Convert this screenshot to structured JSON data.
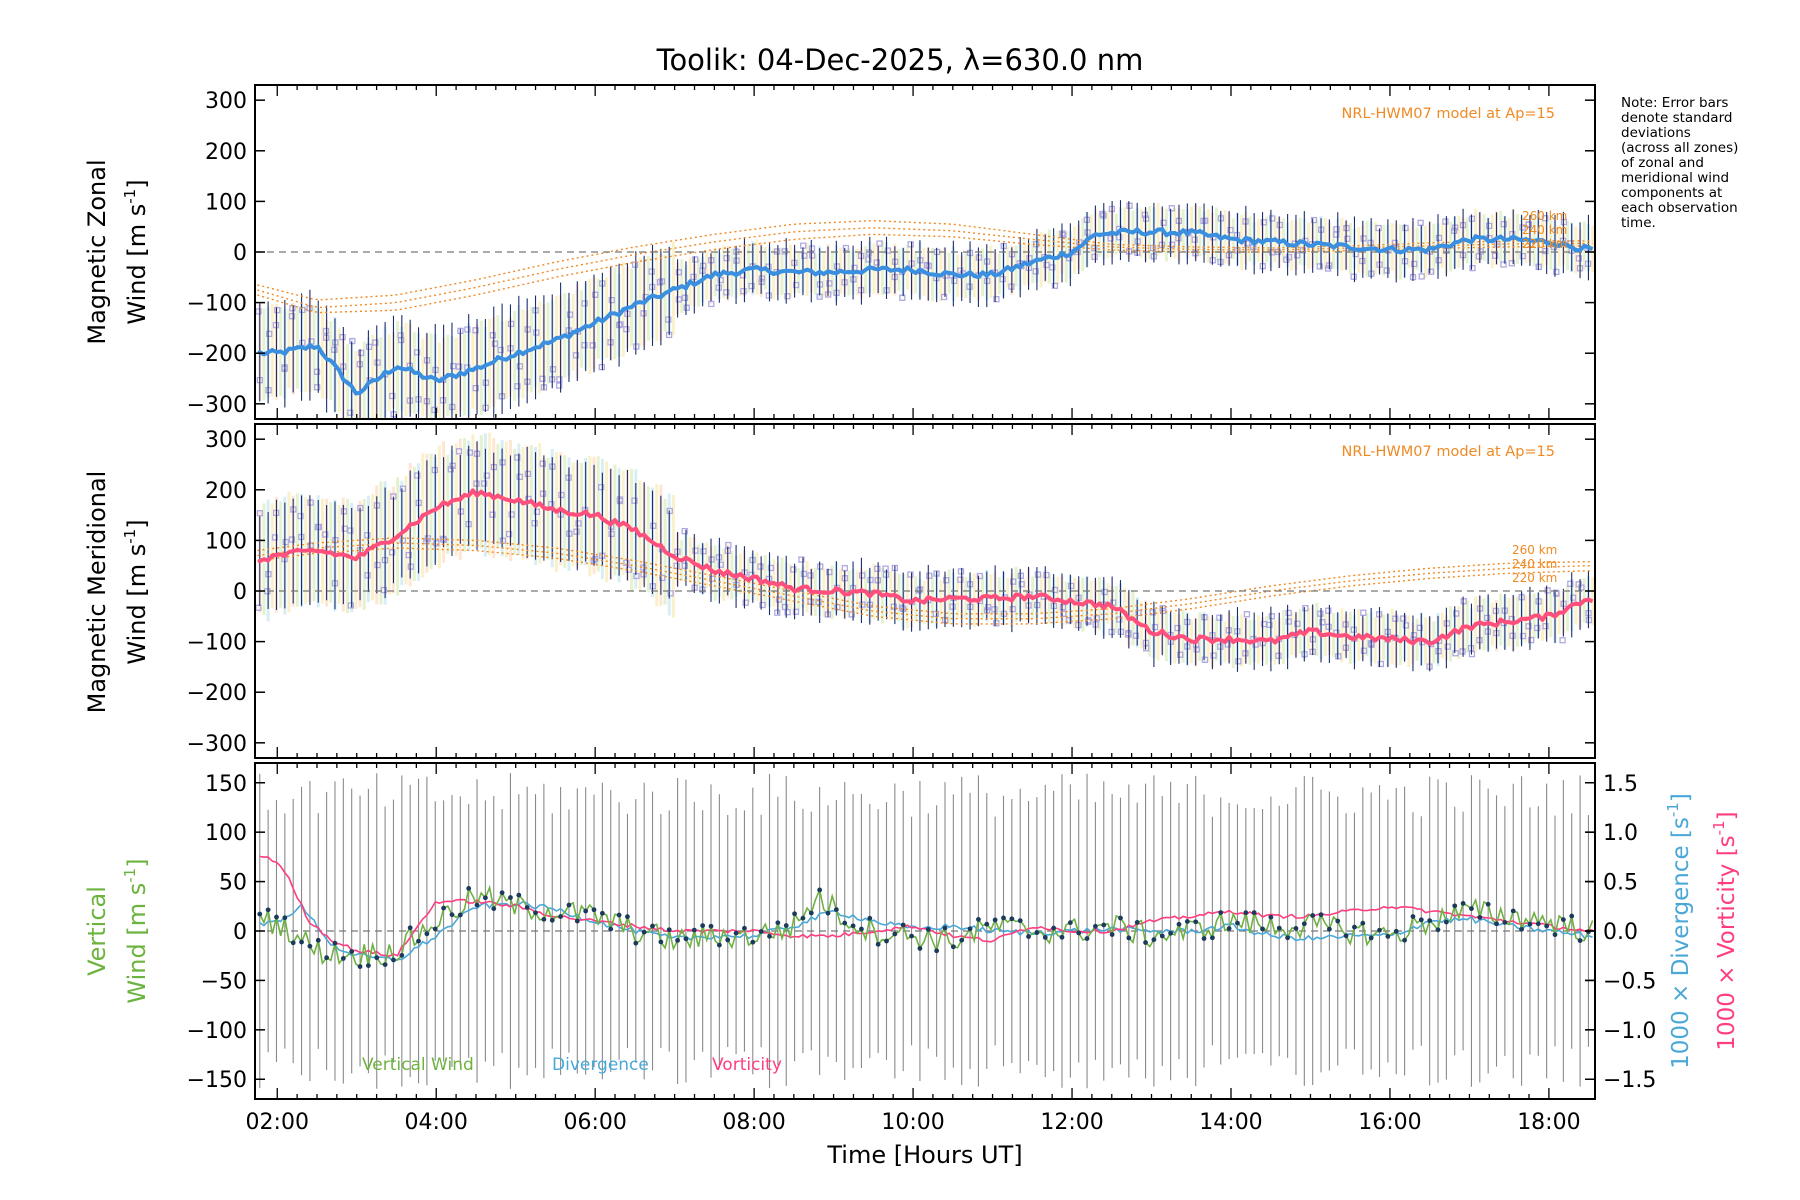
{
  "title": "Toolik: 04-Dec-2025, λ=630.0 nm",
  "note_lines": [
    "Note: Error bars",
    "denote standard",
    "deviations",
    "(across all zones)",
    "of zonal and",
    "meridional wind",
    "components at",
    "each observation",
    "time."
  ],
  "colors": {
    "zonal_mean": "#3a8fe0",
    "meridional_mean": "#ff4f7c",
    "model": "#f08a24",
    "vertical": "#6db33f",
    "divergence": "#4aa8d8",
    "vorticity": "#ff3d7f",
    "scatter": "#b0a8e0",
    "errorbar": "#1a2f6e",
    "zone_haze": "#c8d6a0"
  },
  "chart_data": [
    {
      "type": "line",
      "panel": "zonal",
      "ylabel_line1": "Magnetic Zonal",
      "ylabel_line2": "Wind [m s",
      "ylabel_sup": "-1",
      "ylabel_close": "]",
      "xlim": [
        1.72,
        18.58
      ],
      "ylim": [
        -330,
        330
      ],
      "yticks": [
        300,
        200,
        100,
        0,
        -100,
        -200,
        -300
      ],
      "model_label": "NRL-HWM07 model at Ap=15",
      "alt_labels": [
        "260 km",
        "240 km",
        "220 km"
      ],
      "mean_keypoints": {
        "t": [
          1.75,
          2.0,
          2.5,
          3.0,
          3.5,
          4.0,
          4.5,
          5.0,
          5.5,
          6.0,
          6.5,
          7.0,
          7.5,
          8.0,
          8.5,
          9.0,
          9.5,
          10.0,
          10.5,
          11.0,
          11.5,
          12.0,
          12.3,
          12.8,
          13.5,
          14.0,
          14.5,
          15.0,
          15.5,
          16.0,
          16.5,
          17.0,
          17.5,
          18.0,
          18.5
        ],
        "v": [
          -200,
          -200,
          -185,
          -280,
          -225,
          -255,
          -230,
          -200,
          -175,
          -140,
          -105,
          -75,
          -45,
          -35,
          -40,
          -40,
          -35,
          -35,
          -45,
          -45,
          -20,
          0,
          35,
          40,
          38,
          25,
          20,
          15,
          10,
          5,
          5,
          25,
          25,
          20,
          5
        ]
      },
      "model_series": [
        {
          "name": "260 km",
          "t": [
            1.75,
            2.5,
            3.5,
            4.5,
            5.5,
            6.5,
            7.5,
            8.5,
            9.5,
            10.5,
            11.5,
            12.5,
            13.5,
            14.5,
            15.5,
            16.5,
            17.5,
            18.5
          ],
          "v": [
            -65,
            -95,
            -85,
            -55,
            -20,
            10,
            35,
            55,
            62,
            55,
            35,
            15,
            10,
            8,
            12,
            18,
            22,
            22
          ]
        },
        {
          "name": "240 km",
          "t": [
            1.75,
            2.5,
            3.5,
            4.5,
            5.5,
            6.5,
            7.5,
            8.5,
            9.5,
            10.5,
            11.5,
            12.5,
            13.5,
            14.5,
            15.5,
            16.5,
            17.5,
            18.5
          ],
          "v": [
            -75,
            -110,
            -100,
            -70,
            -35,
            -5,
            20,
            40,
            48,
            42,
            25,
            10,
            5,
            4,
            8,
            12,
            16,
            17
          ]
        },
        {
          "name": "220 km",
          "t": [
            1.75,
            2.5,
            3.5,
            4.5,
            5.5,
            6.5,
            7.5,
            8.5,
            9.5,
            10.5,
            11.5,
            12.5,
            13.5,
            14.5,
            15.5,
            16.5,
            17.5,
            18.5
          ],
          "v": [
            -85,
            -120,
            -115,
            -85,
            -50,
            -20,
            5,
            25,
            35,
            30,
            15,
            4,
            0,
            0,
            3,
            7,
            10,
            12
          ]
        }
      ]
    },
    {
      "type": "line",
      "panel": "meridional",
      "ylabel_line1": "Magnetic Meridional",
      "ylabel_line2": "Wind [m s",
      "ylabel_sup": "-1",
      "ylabel_close": "]",
      "xlim": [
        1.72,
        18.58
      ],
      "ylim": [
        -330,
        330
      ],
      "yticks": [
        300,
        200,
        100,
        0,
        -100,
        -200,
        -300
      ],
      "model_label": "NRL-HWM07 model at Ap=15",
      "alt_labels": [
        "260 km",
        "240 km",
        "220 km"
      ],
      "mean_keypoints": {
        "t": [
          1.75,
          2.0,
          2.5,
          3.0,
          3.5,
          4.0,
          4.5,
          5.0,
          5.5,
          6.0,
          6.5,
          7.0,
          7.5,
          8.0,
          8.5,
          9.0,
          9.5,
          10.0,
          10.5,
          11.0,
          11.5,
          12.0,
          12.5,
          13.0,
          13.5,
          14.0,
          14.5,
          15.0,
          15.5,
          16.0,
          16.5,
          17.0,
          17.5,
          18.0,
          18.5
        ],
        "v": [
          60,
          70,
          80,
          65,
          110,
          165,
          195,
          180,
          160,
          150,
          120,
          70,
          40,
          25,
          5,
          0,
          -5,
          -20,
          -15,
          -15,
          -10,
          -20,
          -30,
          -80,
          -95,
          -95,
          -100,
          -80,
          -90,
          -95,
          -100,
          -70,
          -60,
          -50,
          -15
        ]
      },
      "model_series": [
        {
          "name": "260 km",
          "t": [
            1.75,
            2.5,
            3.5,
            4.5,
            5.5,
            6.5,
            7.5,
            8.5,
            9.5,
            10.5,
            11.5,
            12.5,
            13.5,
            14.5,
            15.5,
            16.5,
            17.5,
            18.5
          ],
          "v": [
            80,
            95,
            105,
            100,
            85,
            60,
            30,
            0,
            -30,
            -45,
            -45,
            -35,
            -15,
            10,
            30,
            45,
            55,
            58
          ]
        },
        {
          "name": "240 km",
          "t": [
            1.75,
            2.5,
            3.5,
            4.5,
            5.5,
            6.5,
            7.5,
            8.5,
            9.5,
            10.5,
            11.5,
            12.5,
            13.5,
            14.5,
            15.5,
            16.5,
            17.5,
            18.5
          ],
          "v": [
            70,
            85,
            95,
            90,
            75,
            50,
            20,
            -10,
            -40,
            -55,
            -55,
            -45,
            -25,
            0,
            20,
            35,
            45,
            50
          ]
        },
        {
          "name": "220 km",
          "t": [
            1.75,
            2.5,
            3.5,
            4.5,
            5.5,
            6.5,
            7.5,
            8.5,
            9.5,
            10.5,
            11.5,
            12.5,
            13.5,
            14.5,
            15.5,
            16.5,
            17.5,
            18.5
          ],
          "v": [
            60,
            75,
            85,
            80,
            65,
            40,
            10,
            -20,
            -50,
            -65,
            -65,
            -55,
            -35,
            -10,
            10,
            25,
            35,
            40
          ]
        }
      ]
    },
    {
      "type": "line",
      "panel": "vertical",
      "ylabel_line1": "Vertical",
      "ylabel_line2": "Wind [m s",
      "ylabel_sup": "-1",
      "ylabel_close": "]",
      "right_label_div": "1000 × Divergence [s",
      "right_label_vort": "1000 × Vorticity [s",
      "right_sup": "-1",
      "right_close": "]",
      "xlabel": "Time [Hours UT]",
      "xticks": [
        "02:00",
        "04:00",
        "06:00",
        "08:00",
        "10:00",
        "12:00",
        "14:00",
        "16:00",
        "18:00"
      ],
      "xtick_values": [
        2,
        4,
        6,
        8,
        10,
        12,
        14,
        16,
        18
      ],
      "xlim": [
        1.72,
        18.58
      ],
      "ylim": [
        -170,
        170
      ],
      "yticks": [
        150,
        100,
        50,
        0,
        -50,
        -100,
        -150
      ],
      "y2lim": [
        -1.7,
        1.7
      ],
      "y2ticks": [
        "1.5",
        "1.0",
        "0.5",
        "0.0",
        "−0.5",
        "−1.0",
        "−1.5"
      ],
      "y2tick_values": [
        1.5,
        1.0,
        0.5,
        0.0,
        -0.5,
        -1.0,
        -1.5
      ],
      "legend": [
        "Vertical Wind",
        "Divergence",
        "Vorticity"
      ],
      "vertical_keypoints": {
        "t": [
          1.75,
          2.0,
          2.5,
          3.0,
          3.5,
          4.0,
          4.5,
          5.0,
          5.5,
          6.0,
          6.5,
          7.0,
          7.5,
          8.0,
          8.5,
          8.8,
          9.2,
          9.5,
          10.0,
          10.5,
          11.0,
          11.5,
          12.0,
          12.5,
          13.0,
          13.5,
          14.0,
          14.5,
          15.0,
          15.5,
          16.0,
          16.5,
          17.0,
          17.5,
          18.0,
          18.5
        ],
        "v": [
          10,
          10,
          -20,
          -25,
          -20,
          10,
          35,
          25,
          20,
          15,
          0,
          -10,
          -5,
          -5,
          5,
          35,
          10,
          0,
          -5,
          -10,
          5,
          0,
          0,
          5,
          -5,
          0,
          10,
          5,
          5,
          0,
          -5,
          10,
          20,
          15,
          10,
          0
        ]
      },
      "divergence_keypoints": {
        "t": [
          1.75,
          2.0,
          2.3,
          2.7,
          3.0,
          3.5,
          4.0,
          4.5,
          5.0,
          5.5,
          6.0,
          6.5,
          7.0,
          7.5,
          8.0,
          8.5,
          9.0,
          9.5,
          10.0,
          10.5,
          11.0,
          11.5,
          12.0,
          12.5,
          13.0,
          13.5,
          14.0,
          14.5,
          15.0,
          15.5,
          16.0,
          16.5,
          17.0,
          17.5,
          18.0,
          18.5
        ],
        "v": [
          0.05,
          0.1,
          0.25,
          -0.15,
          -0.25,
          -0.3,
          -0.05,
          0.25,
          0.28,
          0.22,
          0.1,
          0.0,
          -0.08,
          -0.05,
          -0.05,
          0.05,
          0.2,
          0.1,
          0.02,
          0.05,
          0.0,
          -0.02,
          0.0,
          0.02,
          0.0,
          0.0,
          0.05,
          -0.05,
          -0.08,
          -0.05,
          -0.05,
          0.1,
          0.12,
          0.05,
          0.0,
          -0.05
        ]
      },
      "vorticity_keypoints": {
        "t": [
          1.75,
          1.9,
          2.1,
          2.4,
          2.7,
          3.0,
          3.5,
          4.0,
          4.5,
          5.0,
          5.5,
          6.0,
          6.5,
          7.0,
          7.5,
          8.0,
          8.5,
          9.0,
          9.5,
          10.0,
          10.5,
          11.0,
          11.5,
          12.0,
          12.5,
          13.0,
          13.5,
          14.0,
          14.5,
          15.0,
          15.5,
          16.0,
          16.5,
          17.0,
          17.5,
          18.0,
          18.5
        ],
        "v": [
          0.75,
          0.75,
          0.6,
          0.1,
          -0.1,
          -0.2,
          -0.25,
          0.3,
          0.3,
          0.25,
          0.15,
          0.1,
          0.05,
          0.0,
          0.0,
          0.0,
          -0.05,
          -0.05,
          0.0,
          0.05,
          -0.05,
          -0.1,
          0.05,
          0.0,
          0.0,
          0.1,
          0.15,
          0.2,
          0.15,
          0.15,
          0.2,
          0.25,
          0.2,
          0.15,
          0.1,
          0.05,
          0.0
        ]
      }
    }
  ]
}
